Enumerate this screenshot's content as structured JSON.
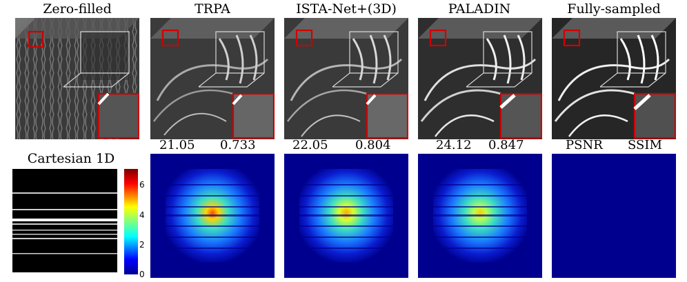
{
  "columns": [
    {
      "key": "zero",
      "title": "Zero-filled"
    },
    {
      "key": "trpa",
      "title": "TRPA",
      "psnr": "21.05",
      "ssim": "0.733"
    },
    {
      "key": "ista",
      "title": "ISTA-Net+(3D)",
      "psnr": "22.05",
      "ssim": "0.804"
    },
    {
      "key": "paladin",
      "title": "PALADIN",
      "psnr": "24.12",
      "ssim": "0.847"
    },
    {
      "key": "full",
      "title": "Fully-sampled",
      "psnr_label": "PSNR",
      "ssim_label": "SSIM"
    }
  ],
  "mask": {
    "title": "Cartesian 1D"
  },
  "colorbar": {
    "ticks": [
      "6",
      "4",
      "2",
      "0"
    ],
    "colormap": "jet",
    "background": "#00008f"
  }
}
